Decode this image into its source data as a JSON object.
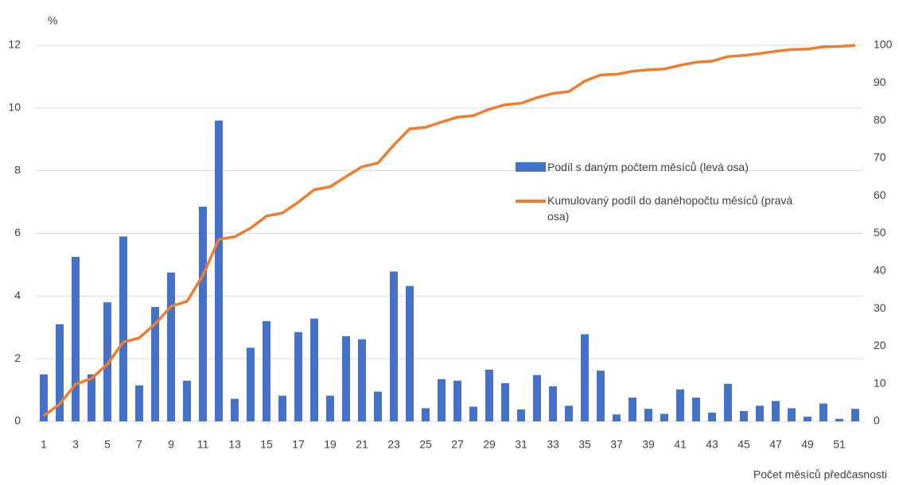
{
  "chart_data": {
    "type": "bar",
    "y_label": "%",
    "x_label": "Počet měsíců předčasnosti",
    "categories": [
      1,
      null,
      3,
      null,
      5,
      null,
      7,
      null,
      9,
      null,
      11,
      null,
      13,
      null,
      15,
      null,
      17,
      null,
      19,
      null,
      21,
      null,
      23,
      null,
      25,
      null,
      27,
      null,
      29,
      null,
      31,
      null,
      33,
      null,
      35,
      null,
      37,
      null,
      39,
      null,
      41,
      null,
      43,
      null,
      45,
      null,
      47,
      null,
      49,
      null,
      51,
      null
    ],
    "series": [
      {
        "name": "Podíl s daným počtem měsíců (levá osa)",
        "type": "bar",
        "color": "#4472c4",
        "axis": "y",
        "values": [
          1.5,
          3.1,
          5.25,
          1.5,
          3.8,
          5.9,
          1.15,
          3.65,
          4.75,
          1.3,
          6.85,
          9.6,
          0.72,
          2.35,
          3.2,
          0.82,
          2.85,
          3.28,
          0.82,
          2.72,
          2.62,
          0.95,
          4.78,
          4.32,
          0.42,
          1.35,
          1.3,
          0.47,
          1.65,
          1.22,
          0.38,
          1.48,
          1.12,
          0.5,
          2.78,
          1.62,
          0.22,
          0.76,
          0.4,
          0.24,
          1.02,
          0.76,
          0.28,
          1.2,
          0.33,
          0.5,
          0.65,
          0.42,
          0.15,
          0.57,
          0.08,
          0.4
        ]
      },
      {
        "name": "Kumulovaný podíl do danéhopočtu měsíců (pravá osa)",
        "type": "line",
        "color": "#ed7d31",
        "axis": "y2",
        "values": [
          1.5,
          4.6,
          9.9,
          11.4,
          15.2,
          21.1,
          22.2,
          25.9,
          30.6,
          31.9,
          38.8,
          48.4,
          49.1,
          51.4,
          54.6,
          55.4,
          58.3,
          61.6,
          62.4,
          65.1,
          67.7,
          68.7,
          73.5,
          77.8,
          78.2,
          79.6,
          80.9,
          81.3,
          83.0,
          84.2,
          84.6,
          86.1,
          87.2,
          87.7,
          90.5,
          92.1,
          92.3,
          93.1,
          93.5,
          93.7,
          94.7,
          95.5,
          95.8,
          97.0,
          97.3,
          97.8,
          98.4,
          98.9,
          99.0,
          99.6,
          99.7,
          100
        ]
      }
    ],
    "ylim": [
      0,
      12
    ],
    "yticks": [
      0,
      2,
      4,
      6,
      8,
      10,
      12
    ],
    "y2lim": [
      0,
      100
    ],
    "y2ticks": [
      0,
      10,
      20,
      30,
      40,
      50,
      60,
      70,
      80,
      90,
      100
    ],
    "grid": true
  }
}
